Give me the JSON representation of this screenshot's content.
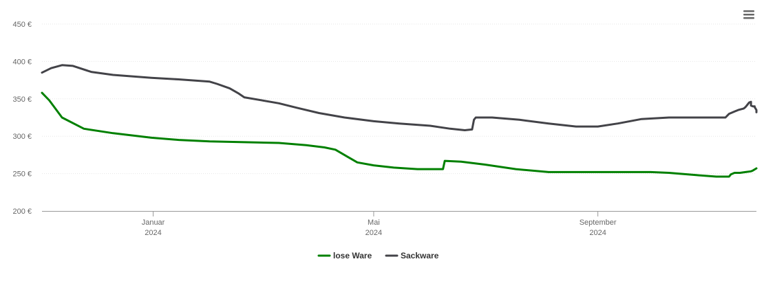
{
  "menu": {
    "icon": "hamburger-menu-icon"
  },
  "chart_data": {
    "type": "line",
    "title": "",
    "xlabel": "",
    "ylabel": "",
    "ylim": [
      200,
      450
    ],
    "y_ticks": [
      200,
      250,
      300,
      350,
      400,
      450
    ],
    "y_tick_labels": [
      "200 €",
      "250 €",
      "300 €",
      "350 €",
      "400 €",
      "450 €"
    ],
    "x_range": [
      "2023-11-01",
      "2024-11-27"
    ],
    "x_ticks": [
      {
        "date": "2024-01-01",
        "label": "Januar",
        "year": "2024"
      },
      {
        "date": "2024-05-01",
        "label": "Mai",
        "year": "2024"
      },
      {
        "date": "2024-09-01",
        "label": "September",
        "year": "2024"
      }
    ],
    "grid": true,
    "legend_position": "bottom-center",
    "series": [
      {
        "name": "lose Ware",
        "color": "#008000",
        "points": [
          [
            "2023-11-01",
            358
          ],
          [
            "2023-11-05",
            348
          ],
          [
            "2023-11-12",
            325
          ],
          [
            "2023-11-24",
            310
          ],
          [
            "2023-12-10",
            304
          ],
          [
            "2023-12-31",
            298
          ],
          [
            "2024-01-15",
            295
          ],
          [
            "2024-02-01",
            293
          ],
          [
            "2024-02-20",
            292
          ],
          [
            "2024-03-10",
            291
          ],
          [
            "2024-03-25",
            288
          ],
          [
            "2024-04-04",
            285
          ],
          [
            "2024-04-10",
            282
          ],
          [
            "2024-04-17",
            272
          ],
          [
            "2024-04-22",
            265
          ],
          [
            "2024-05-01",
            261
          ],
          [
            "2024-05-12",
            258
          ],
          [
            "2024-05-25",
            256
          ],
          [
            "2024-06-08",
            256
          ],
          [
            "2024-06-09",
            267
          ],
          [
            "2024-06-18",
            266
          ],
          [
            "2024-07-01",
            262
          ],
          [
            "2024-07-18",
            256
          ],
          [
            "2024-08-05",
            252
          ],
          [
            "2024-08-20",
            252
          ],
          [
            "2024-09-10",
            252
          ],
          [
            "2024-09-30",
            252
          ],
          [
            "2024-10-10",
            251
          ],
          [
            "2024-10-25",
            248
          ],
          [
            "2024-11-05",
            246
          ],
          [
            "2024-11-12",
            246
          ],
          [
            "2024-11-13",
            249
          ],
          [
            "2024-11-15",
            251
          ],
          [
            "2024-11-18",
            251
          ],
          [
            "2024-11-21",
            252
          ],
          [
            "2024-11-24",
            253
          ],
          [
            "2024-11-25",
            254
          ],
          [
            "2024-11-27",
            257
          ]
        ]
      },
      {
        "name": "Sackware",
        "color": "#434348",
        "points": [
          [
            "2023-11-01",
            385
          ],
          [
            "2023-11-06",
            391
          ],
          [
            "2023-11-12",
            395
          ],
          [
            "2023-11-18",
            394
          ],
          [
            "2023-11-28",
            386
          ],
          [
            "2023-12-10",
            382
          ],
          [
            "2023-12-31",
            378
          ],
          [
            "2024-01-15",
            376
          ],
          [
            "2024-02-01",
            373
          ],
          [
            "2024-02-05",
            370
          ],
          [
            "2024-02-12",
            364
          ],
          [
            "2024-02-17",
            357
          ],
          [
            "2024-02-20",
            352
          ],
          [
            "2024-03-10",
            344
          ],
          [
            "2024-03-20",
            338
          ],
          [
            "2024-04-01",
            331
          ],
          [
            "2024-04-15",
            325
          ],
          [
            "2024-05-01",
            320
          ],
          [
            "2024-05-15",
            317
          ],
          [
            "2024-06-01",
            314
          ],
          [
            "2024-06-12",
            310
          ],
          [
            "2024-06-20",
            308
          ],
          [
            "2024-06-24",
            309
          ],
          [
            "2024-06-25",
            322
          ],
          [
            "2024-06-26",
            325
          ],
          [
            "2024-07-05",
            325
          ],
          [
            "2024-07-20",
            322
          ],
          [
            "2024-08-05",
            317
          ],
          [
            "2024-08-20",
            313
          ],
          [
            "2024-09-01",
            313
          ],
          [
            "2024-09-12",
            317
          ],
          [
            "2024-09-25",
            323
          ],
          [
            "2024-10-10",
            325
          ],
          [
            "2024-10-25",
            325
          ],
          [
            "2024-11-05",
            325
          ],
          [
            "2024-11-10",
            325
          ],
          [
            "2024-11-12",
            330
          ],
          [
            "2024-11-15",
            333
          ],
          [
            "2024-11-17",
            335
          ],
          [
            "2024-11-20",
            337
          ],
          [
            "2024-11-21",
            339
          ],
          [
            "2024-11-22",
            342
          ],
          [
            "2024-11-23",
            345
          ],
          [
            "2024-11-24",
            346
          ],
          [
            "2024-11-24",
            341
          ],
          [
            "2024-11-25",
            340
          ],
          [
            "2024-11-26",
            340
          ],
          [
            "2024-11-26",
            339
          ],
          [
            "2024-11-27",
            335
          ],
          [
            "2024-11-27",
            332
          ]
        ]
      }
    ]
  }
}
